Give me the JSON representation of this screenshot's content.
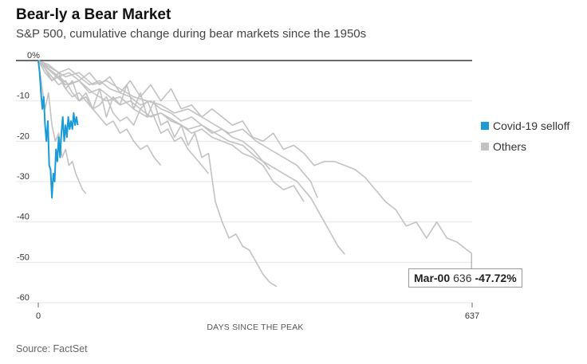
{
  "title": "Bear-ly a Bear Market",
  "subtitle": "S&P 500, cumulative change during bear markets since the 1950s",
  "source": "Source: FactSet",
  "tooltip": {
    "label": "Mar-00",
    "day": "636",
    "value": "-47.72%"
  },
  "colors": {
    "covid": "#1a9ad6",
    "others": "#c2c2c2",
    "baseline": "#111111",
    "grid": "#e6e6e6"
  },
  "chart_data": {
    "type": "line",
    "xlabel": "DAYS SINCE THE PEAK",
    "ylabel": "",
    "xlim": [
      0,
      637
    ],
    "ylim": [
      -60,
      0
    ],
    "x_ticks": [
      0,
      637
    ],
    "y_ticks": [
      0,
      -10,
      -20,
      -30,
      -40,
      -50,
      -60
    ],
    "y_tick_labels": [
      "0%",
      "-10",
      "-20",
      "-30",
      "-40",
      "-50",
      "-60"
    ],
    "grid": "horizontal",
    "legend": {
      "placement": "right",
      "entries": [
        "Covid-19 selloff",
        "Others"
      ]
    },
    "series": [
      {
        "name": "Covid-19 selloff",
        "x": [
          0,
          2,
          4,
          6,
          8,
          10,
          12,
          14,
          16,
          18,
          20,
          22,
          24,
          26,
          28,
          30,
          32,
          34,
          36,
          38,
          40,
          42,
          44,
          46,
          48,
          50,
          52,
          54,
          56,
          58
        ],
        "y": [
          0,
          -3,
          -8,
          -12,
          -9,
          -16,
          -20,
          -15,
          -26,
          -27,
          -34,
          -28,
          -30,
          -22,
          -25,
          -19,
          -24,
          -18,
          -14,
          -20,
          -16,
          -19,
          -14,
          -17,
          -15,
          -17,
          -13,
          -16,
          -14,
          -16
        ]
      },
      {
        "x": [
          0,
          5,
          10,
          15,
          20,
          25,
          30,
          35,
          40,
          45,
          50,
          55,
          60,
          65,
          70
        ],
        "y": [
          0,
          -6,
          -12,
          -8,
          -16,
          -20,
          -18,
          -24,
          -22,
          -26,
          -25,
          -28,
          -30,
          -32,
          -33
        ]
      },
      {
        "x": [
          0,
          10,
          20,
          30,
          40,
          50,
          60,
          70,
          80,
          90,
          100,
          110,
          120,
          130,
          140,
          150,
          160,
          170,
          180,
          190,
          200,
          210,
          220,
          230,
          240,
          250,
          260,
          270,
          280,
          290,
          300,
          310,
          320,
          330,
          340,
          350
        ],
        "y": [
          0,
          -2,
          -5,
          -3,
          -7,
          -5,
          -10,
          -8,
          -12,
          -7,
          -14,
          -9,
          -11,
          -6,
          -12,
          -8,
          -14,
          -10,
          -16,
          -15,
          -19,
          -16,
          -21,
          -18,
          -24,
          -23,
          -35,
          -40,
          -44,
          -43,
          -46,
          -47,
          -50,
          -53,
          -55,
          -56
        ]
      },
      {
        "x": [
          0,
          15,
          30,
          45,
          60,
          75,
          90,
          105,
          120,
          135,
          150,
          165,
          180,
          195,
          210,
          225,
          240,
          255,
          270,
          285,
          300,
          315,
          330,
          345,
          360,
          375,
          390,
          405,
          420,
          435,
          450,
          465,
          480,
          495,
          510,
          525,
          540,
          555,
          570,
          585,
          600,
          615,
          630,
          636
        ],
        "y": [
          0,
          -2,
          -4,
          -3,
          -5,
          -3,
          -6,
          -4,
          -8,
          -5,
          -9,
          -6,
          -10,
          -7,
          -12,
          -11,
          -14,
          -12,
          -14,
          -16,
          -15,
          -19,
          -20,
          -18,
          -22,
          -21,
          -23,
          -26,
          -25,
          -25,
          -26,
          -27,
          -29,
          -32,
          -35,
          -37,
          -41,
          -40,
          -44,
          -40,
          -44,
          -45,
          -47,
          -47.72
        ]
      },
      {
        "x": [
          0,
          20,
          40,
          60,
          80,
          100,
          120,
          140,
          160,
          180,
          200,
          220,
          240,
          260,
          280,
          300,
          320,
          340,
          360,
          380,
          400,
          420,
          440,
          450
        ],
        "y": [
          0,
          -3,
          -6,
          -5,
          -8,
          -10,
          -9,
          -12,
          -14,
          -13,
          -15,
          -17,
          -16,
          -18,
          -20,
          -21,
          -24,
          -26,
          -28,
          -30,
          -34,
          -40,
          -46,
          -48
        ]
      },
      {
        "x": [
          0,
          20,
          40,
          60,
          80,
          100,
          120,
          140,
          160,
          180,
          200,
          220,
          240,
          260,
          280,
          300,
          320,
          340,
          360,
          380,
          400,
          410
        ],
        "y": [
          0,
          -2,
          -4,
          -3,
          -6,
          -5,
          -7,
          -9,
          -10,
          -11,
          -13,
          -12,
          -14,
          -16,
          -18,
          -17,
          -20,
          -22,
          -24,
          -26,
          -30,
          -34
        ]
      },
      {
        "x": [
          0,
          15,
          30,
          45,
          60,
          75,
          90,
          105,
          120,
          135,
          150,
          165,
          180,
          195,
          210,
          225,
          240,
          255,
          270,
          285,
          300,
          315,
          330,
          340
        ],
        "y": [
          0,
          -1,
          -3,
          -2,
          -4,
          -6,
          -5,
          -7,
          -8,
          -9,
          -11,
          -10,
          -12,
          -13,
          -15,
          -14,
          -16,
          -18,
          -17,
          -19,
          -20,
          -22,
          -25,
          -27
        ]
      },
      {
        "x": [
          0,
          15,
          30,
          45,
          60,
          75,
          90,
          105,
          120,
          135,
          150,
          165,
          180,
          195,
          210,
          225,
          240,
          255,
          270,
          285,
          300,
          315,
          330,
          345,
          360,
          375,
          390
        ],
        "y": [
          0,
          -2,
          -4,
          -6,
          -5,
          -8,
          -7,
          -9,
          -11,
          -10,
          -12,
          -14,
          -13,
          -15,
          -16,
          -18,
          -17,
          -19,
          -20,
          -21,
          -23,
          -24,
          -26,
          -30,
          -32,
          -31,
          -35
        ]
      },
      {
        "x": [
          0,
          10,
          20,
          30,
          40,
          50,
          60,
          70,
          80,
          90,
          100,
          110,
          120,
          130,
          140,
          150,
          160,
          170,
          180,
          190,
          200,
          210,
          220,
          230,
          240,
          250
        ],
        "y": [
          0,
          -3,
          -5,
          -4,
          -7,
          -9,
          -8,
          -10,
          -12,
          -11,
          -9,
          -13,
          -15,
          -14,
          -16,
          -12,
          -10,
          -14,
          -18,
          -17,
          -20,
          -19,
          -22,
          -24,
          -26,
          -28
        ]
      },
      {
        "x": [
          0,
          10,
          20,
          30,
          40,
          50,
          60,
          70,
          80,
          90,
          100,
          110,
          120,
          130,
          140,
          150,
          160,
          170,
          180
        ],
        "y": [
          0,
          -2,
          -4,
          -6,
          -5,
          -8,
          -10,
          -9,
          -12,
          -14,
          -16,
          -15,
          -18,
          -17,
          -20,
          -22,
          -21,
          -24,
          -26
        ]
      }
    ]
  }
}
